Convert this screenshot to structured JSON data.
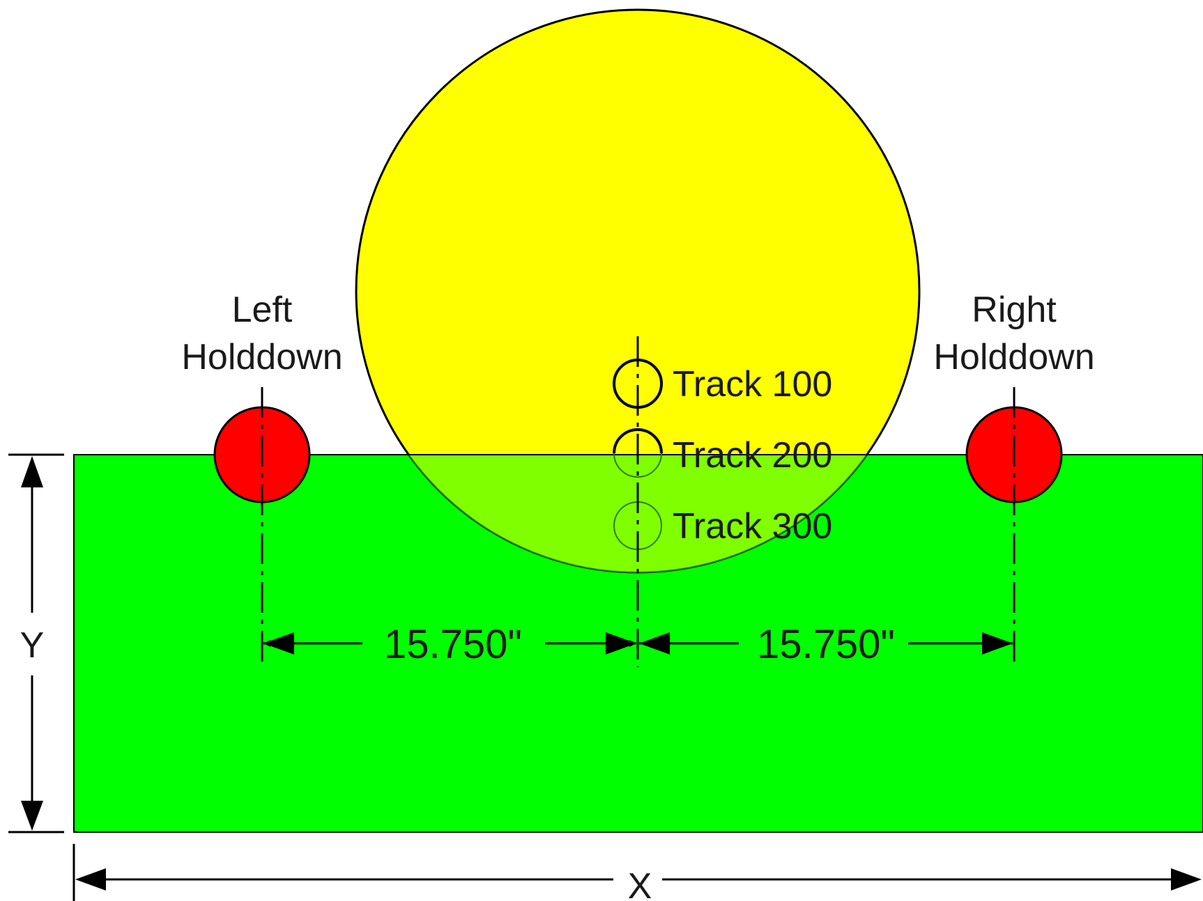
{
  "labels": {
    "left_holddown_line1": "Left",
    "left_holddown_line2": "Holddown",
    "right_holddown_line1": "Right",
    "right_holddown_line2": "Holddown",
    "track_100": "Track 100",
    "track_200": "Track 200",
    "track_300": "Track 300",
    "dim_left": "15.750\"",
    "dim_right": "15.750\"",
    "axis_y": "Y",
    "axis_x": "X"
  },
  "colors": {
    "plate": "#00ff00",
    "plate_overlap": "#80ff00",
    "wheel": "#ffff00",
    "holddown": "#ff0000",
    "stroke": "#000000",
    "faint_stroke": "#2a7a2a"
  }
}
